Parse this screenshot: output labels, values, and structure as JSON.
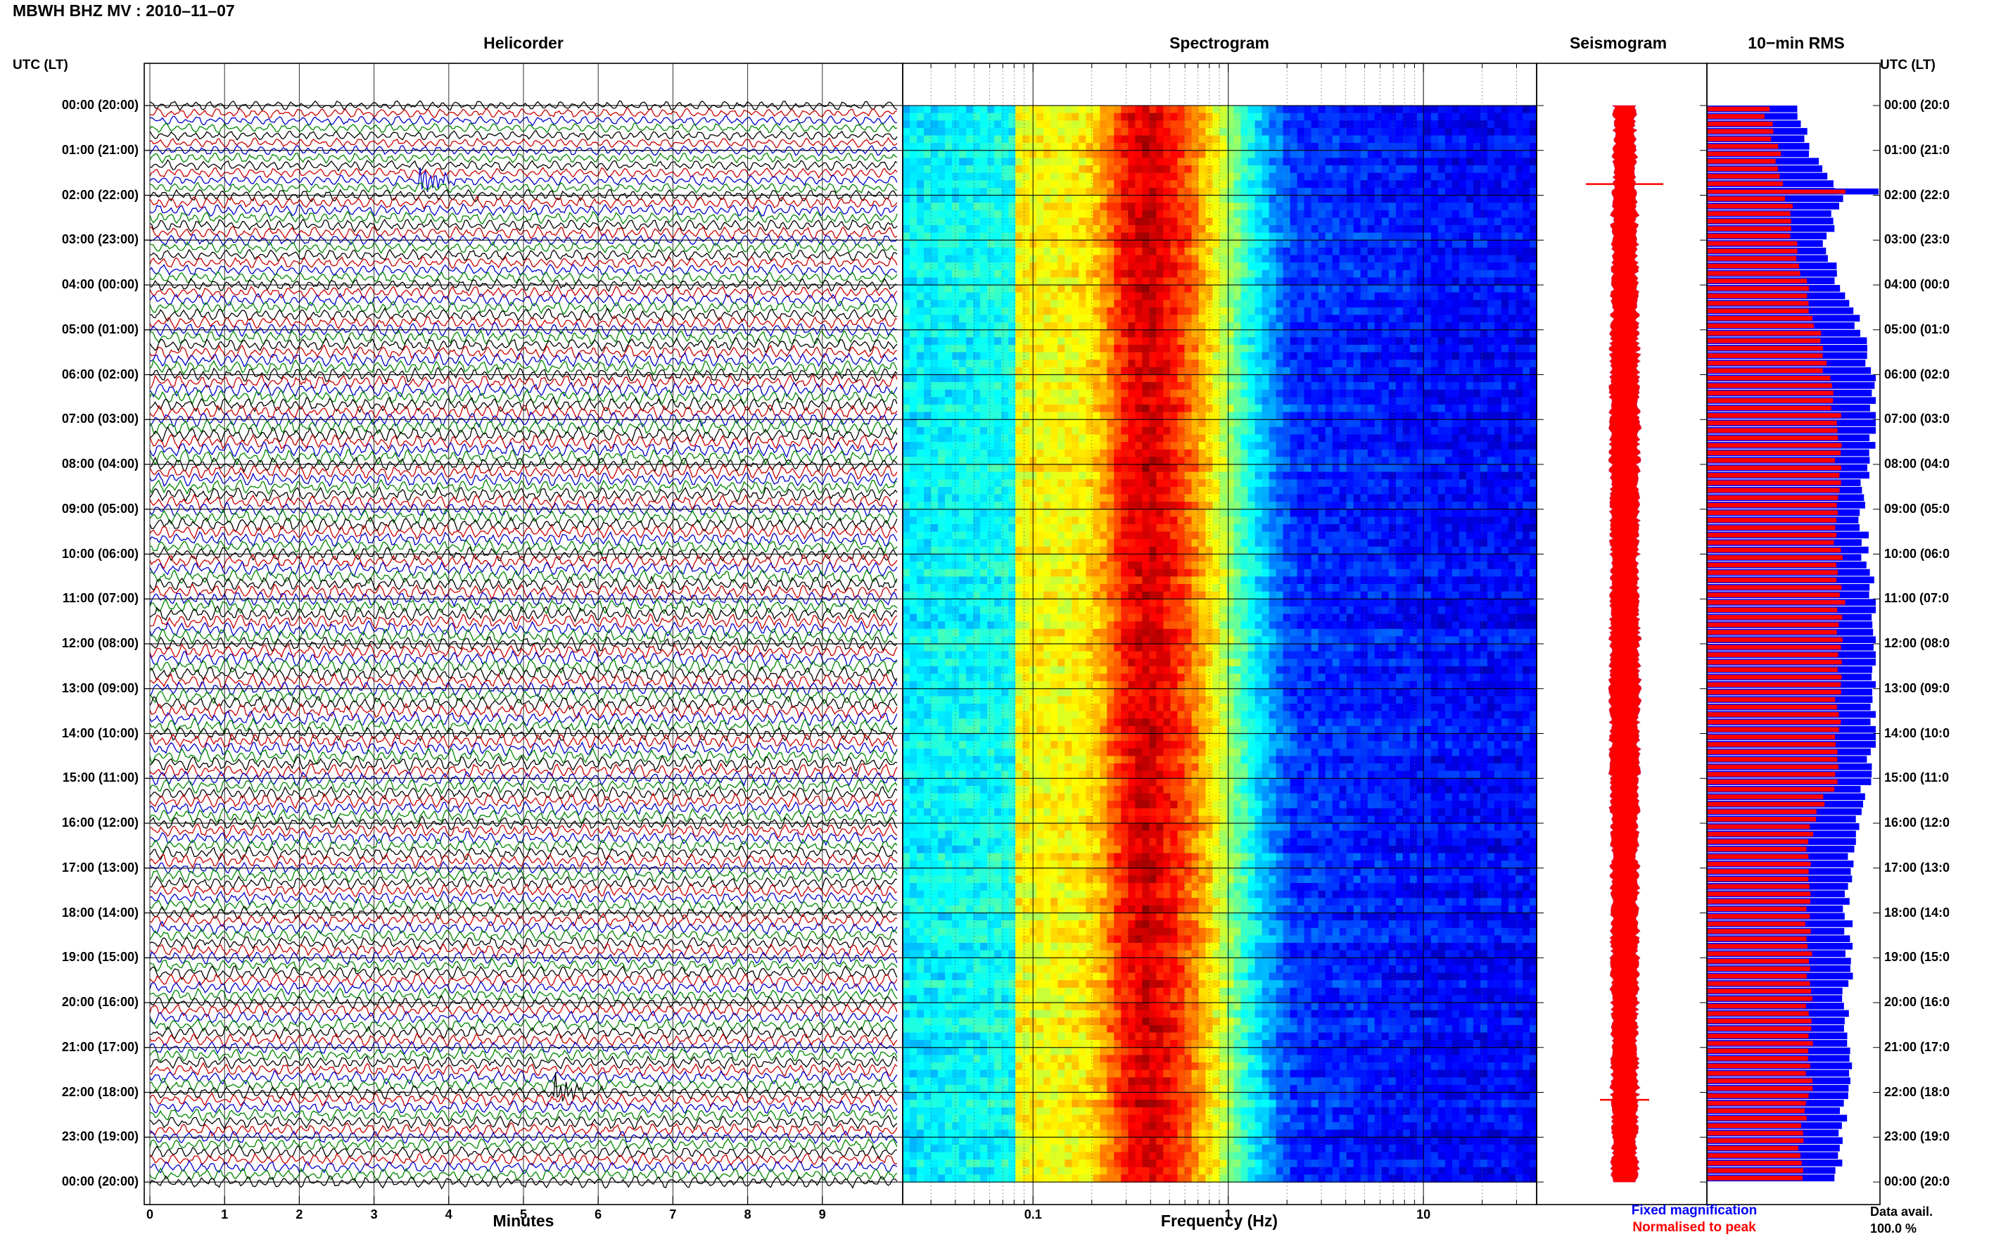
{
  "figure": {
    "title": "MBWH BHZ MV : 2010–11–07",
    "time_axis_label": "UTC (LT)",
    "time_ticks": [
      "00:00 (20:00)",
      "01:00 (21:00)",
      "02:00 (22:00)",
      "03:00 (23:00)",
      "04:00 (00:00)",
      "05:00 (01:00)",
      "06:00 (02:00)",
      "07:00 (03:00)",
      "08:00 (04:00)",
      "09:00 (05:00)",
      "10:00 (06:00)",
      "11:00 (07:00)",
      "12:00 (08:00)",
      "13:00 (09:00)",
      "14:00 (10:00)",
      "15:00 (11:00)",
      "16:00 (12:00)",
      "17:00 (13:00)",
      "18:00 (14:00)",
      "19:00 (15:00)",
      "20:00 (16:00)",
      "21:00 (17:00)",
      "22:00 (18:00)",
      "23:00 (19:00)",
      "00:00 (20:00)"
    ],
    "time_ticks_right": [
      "00:00 (20:0",
      "01:00 (21:0",
      "02:00 (22:0",
      "03:00 (23:0",
      "04:00 (00:0",
      "05:00 (01:0",
      "06:00 (02:0",
      "07:00 (03:0",
      "08:00 (04:0",
      "09:00 (05:0",
      "10:00 (06:0",
      "11:00 (07:0",
      "12:00 (08:0",
      "13:00 (09:0",
      "14:00 (10:0",
      "15:00 (11:0",
      "16:00 (12:0",
      "17:00 (13:0",
      "18:00 (14:0",
      "19:00 (15:0",
      "20:00 (16:0",
      "21:00 (17:0",
      "22:00 (18:0",
      "23:00 (19:0",
      "00:00 (20:0"
    ],
    "legend_fixed": "Fixed magnification",
    "legend_normalised": "Normalised to peak",
    "avail_label": "Data avail.",
    "avail_value": "100.0 %",
    "colors": {
      "fixed": "#0000ff",
      "normalised": "#ff0000",
      "helicorder_traces": [
        "#000000",
        "#cc0000",
        "#0000cc",
        "#008800"
      ]
    }
  },
  "chart_data": [
    {
      "type": "line",
      "title": "Helicorder",
      "xlabel": "Minutes",
      "x_ticks": [
        "0",
        "1",
        "2",
        "3",
        "4",
        "5",
        "6",
        "7",
        "8",
        "9"
      ],
      "xlim": [
        0,
        10
      ],
      "ylim_hours": [
        0,
        24
      ],
      "trace_minutes": 10,
      "events": [
        {
          "time_utc": "01:40",
          "minute": 3.6,
          "color": "#0000cc"
        },
        {
          "time_utc": "22:00",
          "minute": 5.4,
          "color": "#cc0000"
        }
      ]
    },
    {
      "type": "heatmap",
      "title": "Spectrogram",
      "xlabel": "Frequency (Hz)",
      "x_scale": "log",
      "x_ticks": [
        "0.1",
        "1",
        "10"
      ],
      "xlim": [
        0.0215,
        38
      ],
      "ylim_hours": [
        0,
        24
      ],
      "peak_frequency_hz": 0.35,
      "colormap": "jet"
    },
    {
      "type": "line",
      "title": "Seismogram",
      "ylim_hours": [
        0,
        24
      ],
      "color": "#ff0000",
      "spikes_utc": [
        "01:45",
        "22:10"
      ]
    },
    {
      "type": "bar",
      "title": "10−min RMS",
      "orientation": "horizontal",
      "ylim_hours": [
        0,
        24
      ],
      "bins_per_hour": 6,
      "series": [
        {
          "name": "Fixed magnification",
          "color": "#0000ff"
        },
        {
          "name": "Normalised to peak",
          "color": "#ff0000"
        }
      ],
      "hourly_rms_fixed": [
        0.55,
        0.62,
        0.78,
        0.7,
        0.8,
        0.92,
        0.98,
        1.0,
        0.95,
        0.92,
        0.94,
        1.0,
        1.0,
        1.0,
        0.98,
        0.95,
        0.88,
        0.85,
        0.83,
        0.85,
        0.82,
        0.85,
        0.83,
        0.78
      ],
      "hourly_rms_normalised": [
        0.35,
        0.42,
        0.48,
        0.52,
        0.58,
        0.66,
        0.72,
        0.78,
        0.78,
        0.76,
        0.78,
        0.8,
        0.78,
        0.78,
        0.77,
        0.76,
        0.62,
        0.6,
        0.6,
        0.62,
        0.6,
        0.62,
        0.6,
        0.56
      ]
    }
  ]
}
